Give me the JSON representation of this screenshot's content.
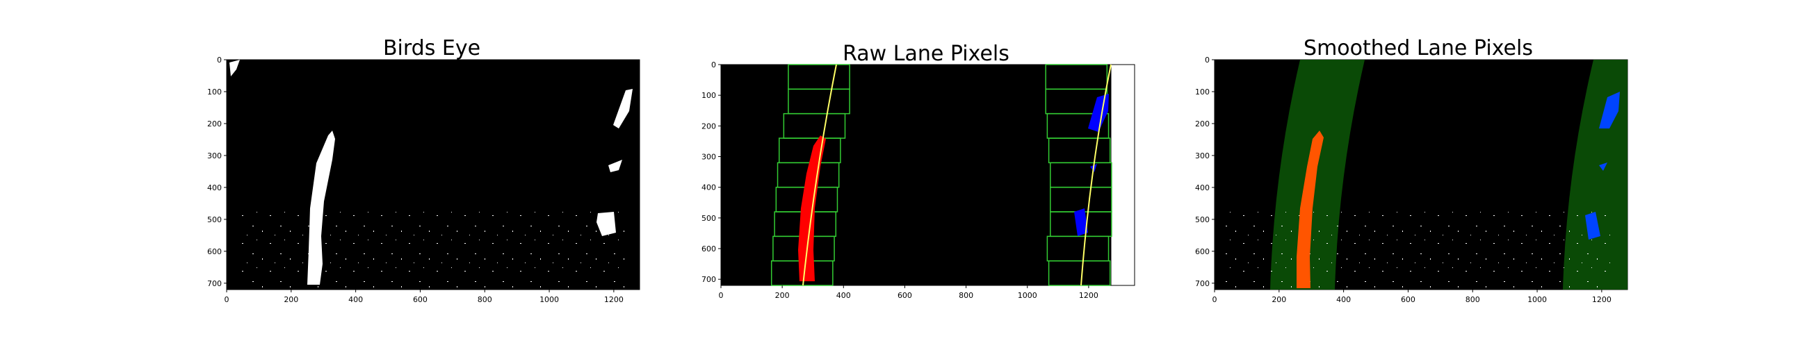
{
  "chart_data": [
    {
      "type": "image",
      "title": "Birds Eye",
      "xticks": [
        0,
        200,
        400,
        600,
        800,
        1000,
        1200
      ],
      "yticks": [
        0,
        100,
        200,
        300,
        400,
        500,
        600,
        700
      ],
      "xlim": [
        0,
        1280
      ],
      "ylim": [
        720,
        0
      ],
      "content": "binary white lane pixels on black"
    },
    {
      "type": "image",
      "title": "Raw Lane Pixels",
      "xticks": [
        0,
        200,
        400,
        600,
        800,
        1000,
        1200
      ],
      "yticks": [
        0,
        100,
        200,
        300,
        400,
        500,
        600,
        700
      ],
      "xlim": [
        0,
        1350
      ],
      "ylim": [
        720,
        0
      ],
      "content": "sliding windows (green), left lane pixels red, right lane pixels blue, fitted polynomial lines yellow",
      "colors": {
        "window": "#33cc33",
        "left_pixels": "#ff0000",
        "right_pixels": "#0000ff",
        "fit": "#ffff66"
      }
    },
    {
      "type": "image",
      "title": "Smoothed Lane Pixels",
      "xticks": [
        0,
        200,
        400,
        600,
        800,
        1000,
        1200
      ],
      "yticks": [
        0,
        100,
        200,
        300,
        400,
        500,
        600,
        700
      ],
      "xlim": [
        0,
        1280
      ],
      "ylim": [
        720,
        0
      ],
      "content": "search margin bands (dark green), left lane pixels orange, right lane pixels blue",
      "colors": {
        "band": "#0a4a06",
        "left_pixels": "#ff5500",
        "right_pixels": "#0044ff"
      }
    }
  ]
}
